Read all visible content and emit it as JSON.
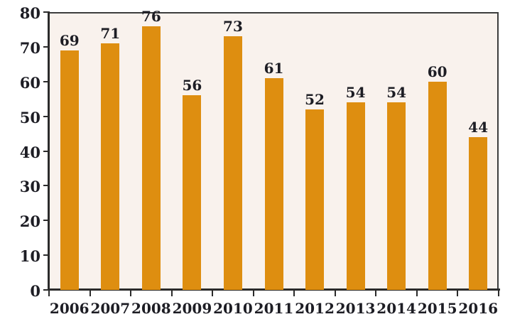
{
  "chart_data": {
    "type": "bar",
    "categories": [
      "2006",
      "2007",
      "2008",
      "2009",
      "2010",
      "2011",
      "2012",
      "2013",
      "2014",
      "2015",
      "2016"
    ],
    "values": [
      69,
      71,
      76,
      56,
      73,
      61,
      52,
      54,
      54,
      60,
      44
    ],
    "title": "",
    "xlabel": "",
    "ylabel": "",
    "ylim": [
      0,
      80
    ],
    "yticks": [
      0,
      10,
      20,
      30,
      40,
      50,
      60,
      70,
      80
    ],
    "grid": false,
    "legend": false,
    "value_labels_shown": true,
    "colors": {
      "bar": "#de8e10",
      "plot_background": "#f9f2ed",
      "outer_background": "#ffffff",
      "axis": "#2b2b2b",
      "plot_border": "#3d3d3d",
      "text": "#1d1d24"
    }
  }
}
